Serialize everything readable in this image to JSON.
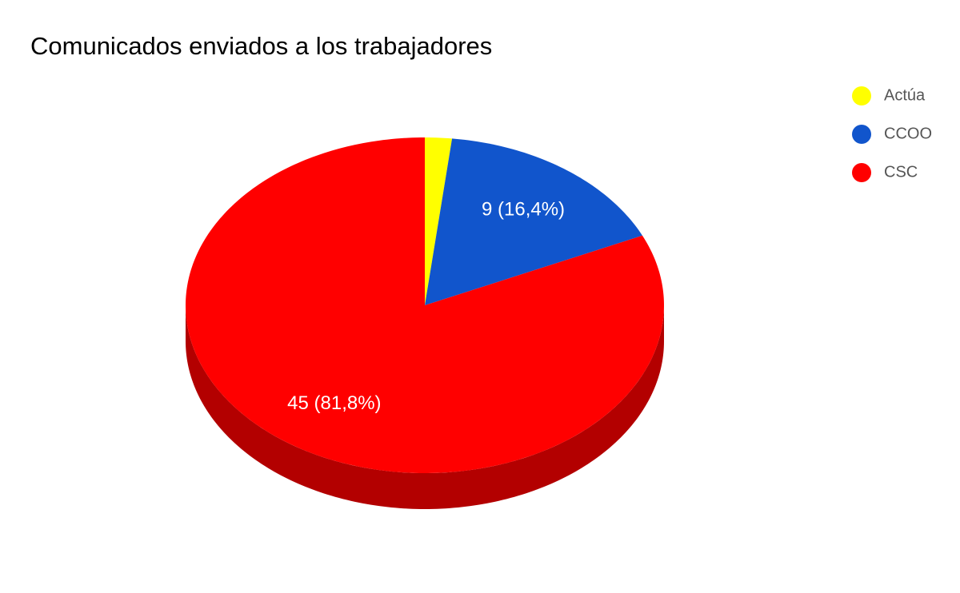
{
  "chart_data": {
    "type": "pie",
    "title": "Comunicados enviados a los trabajadores",
    "categories": [
      "Actúa",
      "CCOO",
      "CSC"
    ],
    "values": [
      1,
      9,
      45
    ],
    "value_labels": [
      null,
      "9 (16,4%)",
      "45 (81,8%)"
    ],
    "colors": [
      "#ffff00",
      "#1155cc",
      "#ff0000"
    ],
    "legend": "right",
    "three_d": true
  }
}
